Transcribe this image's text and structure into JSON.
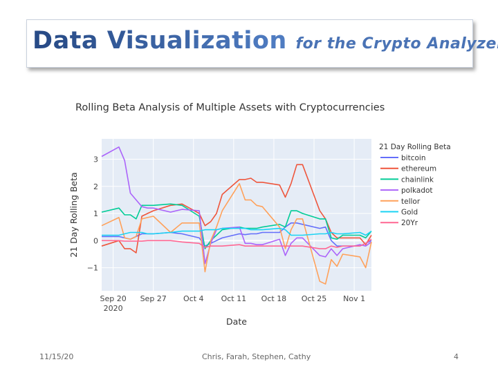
{
  "slide": {
    "title_part1": "Data Visualization",
    "title_part2": "for the Crypto Analyzer",
    "footer_date": "11/15/20",
    "footer_authors": "Chris, Farah, Stephen, Cathy",
    "page_number": "4"
  },
  "colors": {
    "title_dark": "#284b87",
    "title_light": "#4f7cc1",
    "plot_bg": "#e5ecf6"
  },
  "chart_data": {
    "type": "line",
    "title": "Rolling Beta Analysis of Multiple Assets with Cryptocurrencies",
    "xlabel": "Date",
    "ylabel": "21 Day Rolling Beta",
    "xlim": [
      "2020-09-18",
      "2020-11-04"
    ],
    "ylim": [
      -1.85,
      3.75
    ],
    "yticks": [
      -1,
      0,
      1,
      2,
      3
    ],
    "xticks": [
      {
        "date": "2020-09-20",
        "label": "Sep 20",
        "sub": "2020"
      },
      {
        "date": "2020-09-27",
        "label": "Sep 27",
        "sub": ""
      },
      {
        "date": "2020-10-04",
        "label": "Oct 4",
        "sub": ""
      },
      {
        "date": "2020-10-11",
        "label": "Oct 11",
        "sub": ""
      },
      {
        "date": "2020-10-18",
        "label": "Oct 18",
        "sub": ""
      },
      {
        "date": "2020-10-25",
        "label": "Oct 25",
        "sub": ""
      },
      {
        "date": "2020-11-01",
        "label": "Nov 1",
        "sub": ""
      }
    ],
    "grid": true,
    "legend_title": "21 Day Rolling Beta",
    "legend_position": "right",
    "x": [
      "2020-09-18",
      "2020-09-21",
      "2020-09-22",
      "2020-09-23",
      "2020-09-24",
      "2020-09-25",
      "2020-09-26",
      "2020-09-27",
      "2020-09-30",
      "2020-10-02",
      "2020-10-05",
      "2020-10-06",
      "2020-10-07",
      "2020-10-08",
      "2020-10-09",
      "2020-10-12",
      "2020-10-13",
      "2020-10-14",
      "2020-10-15",
      "2020-10-16",
      "2020-10-19",
      "2020-10-20",
      "2020-10-21",
      "2020-10-22",
      "2020-10-23",
      "2020-10-26",
      "2020-10-27",
      "2020-10-28",
      "2020-10-29",
      "2020-10-30",
      "2020-11-02",
      "2020-11-03",
      "2020-11-04"
    ],
    "series": [
      {
        "name": "bitcoin",
        "color": "#636efa",
        "values": [
          0.15,
          0.15,
          0.1,
          0.05,
          0.15,
          0.25,
          0.25,
          0.25,
          0.3,
          0.25,
          0.1,
          -0.2,
          -0.1,
          0.0,
          0.1,
          0.25,
          0.22,
          0.25,
          0.25,
          0.3,
          0.3,
          0.5,
          0.65,
          0.65,
          0.6,
          0.45,
          0.5,
          0.0,
          -0.2,
          -0.2,
          -0.2,
          -0.1,
          0.0
        ]
      },
      {
        "name": "ethereum",
        "color": "#ef553b",
        "values": [
          -0.2,
          0.0,
          -0.3,
          -0.3,
          -0.45,
          0.9,
          1.0,
          1.1,
          1.3,
          1.35,
          1.0,
          0.55,
          0.7,
          1.0,
          1.7,
          2.25,
          2.25,
          2.3,
          2.15,
          2.15,
          2.05,
          1.6,
          2.1,
          2.8,
          2.8,
          1.1,
          0.8,
          0.3,
          0.1,
          0.1,
          0.1,
          -0.15,
          0.2
        ]
      },
      {
        "name": "chainlink",
        "color": "#00cc96",
        "values": [
          1.05,
          1.2,
          0.95,
          0.95,
          0.8,
          1.3,
          1.3,
          1.3,
          1.35,
          1.3,
          0.9,
          -0.3,
          0.0,
          0.2,
          0.4,
          0.5,
          0.45,
          0.45,
          0.45,
          0.5,
          0.6,
          0.5,
          1.1,
          1.1,
          1.0,
          0.8,
          0.8,
          0.1,
          0.05,
          0.2,
          0.2,
          0.1,
          0.35
        ]
      },
      {
        "name": "polkadot",
        "color": "#ab63fa",
        "values": [
          3.1,
          3.45,
          2.95,
          1.75,
          1.5,
          1.25,
          1.2,
          1.2,
          1.05,
          1.15,
          1.1,
          -0.85,
          -0.1,
          0.4,
          0.45,
          0.5,
          -0.1,
          -0.1,
          -0.15,
          -0.15,
          0.05,
          -0.55,
          -0.1,
          0.1,
          0.1,
          -0.55,
          -0.6,
          -0.3,
          -0.55,
          -0.3,
          -0.15,
          -0.2,
          -0.05
        ]
      },
      {
        "name": "tellor",
        "color": "#ffa15a",
        "values": [
          0.55,
          0.85,
          0.1,
          0.05,
          0.15,
          0.8,
          0.85,
          0.9,
          0.3,
          0.65,
          0.65,
          -1.15,
          0.0,
          0.5,
          1.1,
          2.1,
          1.5,
          1.5,
          1.3,
          1.25,
          0.5,
          -0.3,
          0.4,
          0.8,
          0.8,
          -1.5,
          -1.6,
          -0.7,
          -0.95,
          -0.5,
          -0.6,
          -1.0,
          -0.05
        ]
      },
      {
        "name": "Gold",
        "color": "#19d3f3",
        "values": [
          0.2,
          0.2,
          0.25,
          0.3,
          0.3,
          0.3,
          0.25,
          0.25,
          0.3,
          0.35,
          0.35,
          0.4,
          0.4,
          0.4,
          0.45,
          0.45,
          0.45,
          0.4,
          0.4,
          0.4,
          0.45,
          0.4,
          0.2,
          0.2,
          0.2,
          0.25,
          0.25,
          0.3,
          0.25,
          0.25,
          0.3,
          0.2,
          0.35
        ]
      },
      {
        "name": "20Yr",
        "color": "#ff6692",
        "values": [
          0.0,
          0.0,
          -0.02,
          -0.02,
          -0.02,
          -0.02,
          0.0,
          0.0,
          0.0,
          -0.05,
          -0.1,
          -0.25,
          -0.2,
          -0.2,
          -0.2,
          -0.15,
          -0.2,
          -0.2,
          -0.2,
          -0.2,
          -0.2,
          -0.2,
          -0.2,
          -0.2,
          -0.2,
          -0.3,
          -0.3,
          -0.2,
          -0.25,
          -0.2,
          -0.2,
          -0.1,
          0.05
        ]
      }
    ]
  }
}
